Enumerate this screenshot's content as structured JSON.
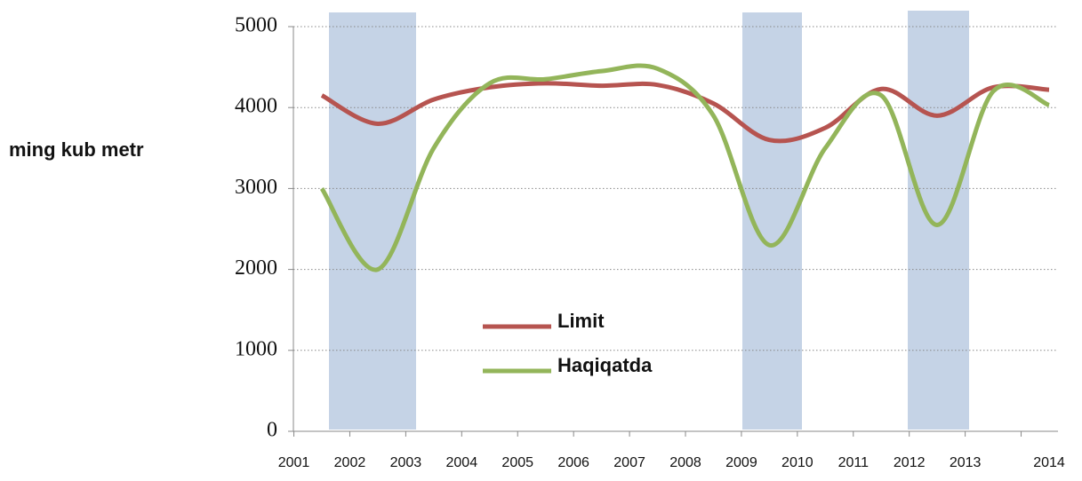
{
  "chart_data": {
    "type": "line",
    "y_label": "ming kub metr",
    "categories": [
      "2001",
      "2002",
      "2003",
      "2004",
      "2005",
      "2006",
      "2007",
      "2008",
      "2009",
      "2010",
      "2011",
      "2012",
      "2013",
      "2014"
    ],
    "series": [
      {
        "name": "Limit",
        "color": "#b65450",
        "values": [
          4150,
          3800,
          4100,
          4250,
          4300,
          4270,
          4280,
          4050,
          3600,
          3750,
          4230,
          3900,
          4250,
          4220
        ]
      },
      {
        "name": "Haqiqatda",
        "color": "#93b55a",
        "values": [
          3000,
          2000,
          3500,
          4300,
          4350,
          4450,
          4480,
          3900,
          2300,
          3500,
          4150,
          2550,
          4200,
          4030
        ]
      }
    ],
    "ylim": [
      0,
      5000
    ],
    "yticks": [
      0,
      1000,
      2000,
      3000,
      4000,
      5000
    ],
    "grid": true
  }
}
